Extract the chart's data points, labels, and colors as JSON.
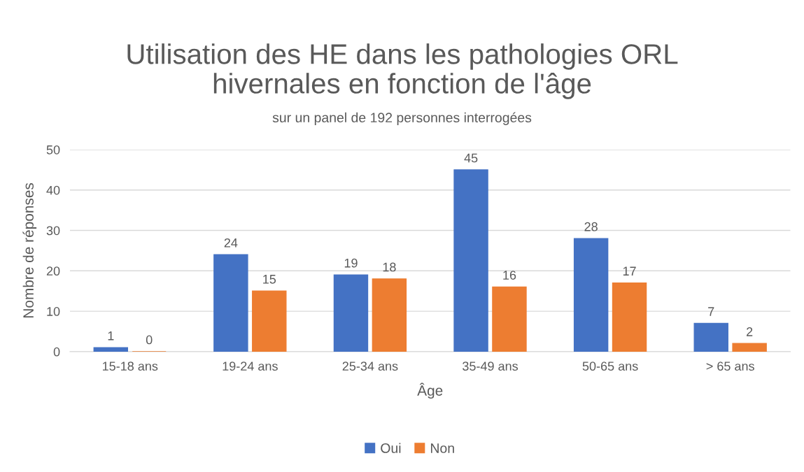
{
  "chart_data": {
    "type": "bar",
    "title": "Utilisation des HE dans les pathologies ORL\nhivernales en fonction de l'âge",
    "subtitle": "sur un panel de 192 personnes interrogées",
    "xlabel": "Âge",
    "ylabel": "Nombre de réponses",
    "categories": [
      "15-18 ans",
      "19-24 ans",
      "25-34 ans",
      "35-49 ans",
      "50-65 ans",
      "> 65 ans"
    ],
    "series": [
      {
        "name": "Oui",
        "color": "#4472c4",
        "values": [
          1,
          24,
          19,
          45,
          28,
          7
        ]
      },
      {
        "name": "Non",
        "color": "#ed7d31",
        "values": [
          0,
          15,
          18,
          16,
          17,
          2
        ]
      }
    ],
    "ylim": [
      0,
      50
    ],
    "yticks": [
      0,
      10,
      20,
      30,
      40,
      50
    ],
    "grid": "y",
    "legend": "bottom",
    "data_labels": true
  }
}
